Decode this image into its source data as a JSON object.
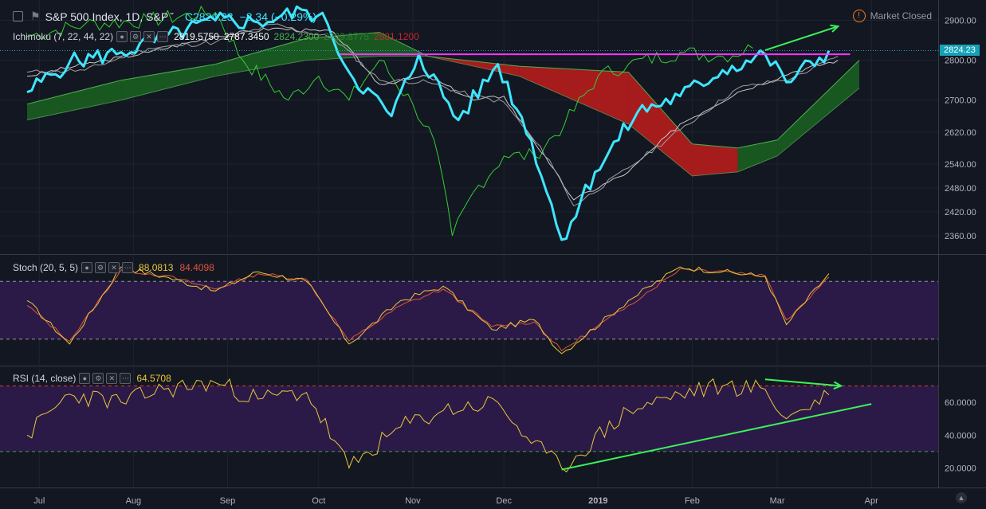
{
  "header": {
    "symbol": "S&P 500 Index, 1D, S&P",
    "close": "C2824.23",
    "change": "−8.34 (−0.29%)",
    "market_status": "Market Closed"
  },
  "ichimoku": {
    "label": "Ichimoku (7, 22, 44, 22)",
    "values": [
      "2819.5750",
      "2787.3450",
      "2824.2300",
      "2709.8775",
      "2581.1200"
    ],
    "colors": [
      "#ffffff",
      "#ffffff",
      "#4caf50",
      "#2e7d32",
      "#c62828"
    ]
  },
  "stoch": {
    "label": "Stoch (20, 5, 5)",
    "k": "88.0813",
    "d": "84.4098"
  },
  "rsi": {
    "label": "RSI (14, close)",
    "value": "64.5708"
  },
  "price_badge": "2824.23",
  "price_axis": [
    "2900.00",
    "2800.00",
    "2700.00",
    "2620.00",
    "2540.00",
    "2480.00",
    "2420.00",
    "2360.00"
  ],
  "rsi_axis": [
    "60.0000",
    "40.0000",
    "20.0000"
  ],
  "time_axis": [
    "Jul",
    "Aug",
    "Sep",
    "Oct",
    "Nov",
    "Dec",
    "2019",
    "Feb",
    "Mar",
    "Apr"
  ],
  "colors": {
    "price_line": "#3ee6ff",
    "kijun": "#c8c8c8",
    "tenkan": "#9e9e9e",
    "chikou": "#2fd12f",
    "cloud_bull": "#1b5e20",
    "cloud_bear": "#b71c1c",
    "resistance": "#ff33ff",
    "annotation": "#3cf05a",
    "stoch_k": "#e8c83a",
    "stoch_d": "#e0553b",
    "rsi_line": "#e8c83a",
    "band_fill": "#2b1a47"
  },
  "chart_data": [
    {
      "type": "line",
      "title": "S&P 500 Index, 1D, S&P",
      "ylim": [
        2330,
        2935
      ],
      "x": [
        "2018-07-01",
        "2018-07-15",
        "2018-08-01",
        "2018-08-15",
        "2018-09-01",
        "2018-09-15",
        "2018-10-01",
        "2018-10-08",
        "2018-10-15",
        "2018-10-29",
        "2018-11-07",
        "2018-11-20",
        "2018-12-03",
        "2018-12-14",
        "2018-12-24",
        "2019-01-04",
        "2019-01-18",
        "2019-02-01",
        "2019-02-15",
        "2019-03-01",
        "2019-03-08",
        "2019-03-22"
      ],
      "series": [
        {
          "values": [
            2720,
            2795,
            2820,
            2855,
            2900,
            2895,
            2925,
            2890,
            2770,
            2660,
            2815,
            2650,
            2790,
            2600,
            2350,
            2520,
            2670,
            2710,
            2775,
            2815,
            2745,
            2824.23
          ]
        }
      ],
      "resistance_level": 2815
    },
    {
      "type": "line",
      "title": "Stoch (20, 5, 5)",
      "ylim": [
        0,
        100
      ],
      "x": [
        "2018-07-01",
        "2018-07-15",
        "2018-08-01",
        "2018-08-15",
        "2018-09-01",
        "2018-09-15",
        "2018-10-01",
        "2018-10-15",
        "2018-11-01",
        "2018-11-15",
        "2018-12-01",
        "2018-12-15",
        "2018-12-24",
        "2019-01-15",
        "2019-02-01",
        "2019-02-15",
        "2019-03-01",
        "2019-03-08",
        "2019-03-22"
      ],
      "series": [
        {
          "name": "K",
          "values": [
            60,
            15,
            95,
            85,
            70,
            90,
            80,
            15,
            60,
            75,
            30,
            40,
            5,
            60,
            95,
            90,
            85,
            35,
            88.08
          ]
        },
        {
          "name": "D",
          "values": [
            55,
            18,
            92,
            86,
            72,
            88,
            82,
            18,
            55,
            72,
            33,
            38,
            8,
            55,
            93,
            91,
            86,
            40,
            84.41
          ]
        }
      ],
      "bands": [
        80,
        20
      ]
    },
    {
      "type": "line",
      "title": "RSI (14, close)",
      "ylim": [
        12,
        78
      ],
      "x": [
        "2018-07-01",
        "2018-07-15",
        "2018-08-01",
        "2018-08-15",
        "2018-09-01",
        "2018-09-15",
        "2018-10-01",
        "2018-10-15",
        "2018-11-01",
        "2018-11-15",
        "2018-12-03",
        "2018-12-14",
        "2018-12-24",
        "2019-01-15",
        "2019-02-01",
        "2019-02-15",
        "2019-03-01",
        "2019-03-08",
        "2019-03-22"
      ],
      "series": [
        {
          "values": [
            40,
            65,
            60,
            68,
            72,
            62,
            66,
            20,
            45,
            55,
            60,
            35,
            20,
            55,
            65,
            70,
            68,
            50,
            64.57
          ]
        }
      ],
      "bands": [
        70,
        30
      ]
    }
  ]
}
